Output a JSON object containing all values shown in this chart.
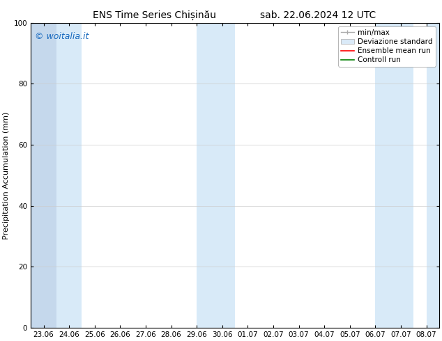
{
  "title_left": "ENS Time Series Chișinău",
  "title_right": "sab. 22.06.2024 12 UTC",
  "ylabel": "Precipitation Accumulation (mm)",
  "watermark": "© woitalia.it",
  "ylim": [
    0,
    100
  ],
  "yticks": [
    0,
    20,
    40,
    60,
    80,
    100
  ],
  "x_start": "2024-06-23",
  "x_end": "2024-07-08",
  "x_tick_dates": [
    "2024-06-23",
    "2024-06-24",
    "2024-06-25",
    "2024-06-26",
    "2024-06-27",
    "2024-06-28",
    "2024-06-29",
    "2024-06-30",
    "2024-07-01",
    "2024-07-02",
    "2024-07-03",
    "2024-07-04",
    "2024-07-05",
    "2024-07-06",
    "2024-07-07",
    "2024-07-08"
  ],
  "x_tick_labels": [
    "23.06",
    "24.06",
    "25.06",
    "26.06",
    "27.06",
    "28.06",
    "29.06",
    "30.06",
    "01.07",
    "02.07",
    "03.07",
    "04.07",
    "05.07",
    "06.07",
    "07.07",
    "08.07"
  ],
  "shaded_bands": [
    {
      "x_start": "2024-06-23 00:00",
      "x_end": "2024-06-23 12:00"
    },
    {
      "x_start": "2024-06-23 12:00",
      "x_end": "2024-06-24 12:00"
    },
    {
      "x_start": "2024-06-29 00:00",
      "x_end": "2024-06-30 12:00"
    },
    {
      "x_start": "2024-07-06 00:00",
      "x_end": "2024-07-07 12:00"
    }
  ],
  "band_color_dark": "#c8ddf0",
  "band_color_light": "#ddeef8",
  "std_band_color": "#daeaf8",
  "minmax_band_color": "#aaaaaa",
  "ensemble_mean_color": "#ff0000",
  "control_run_color": "#008000",
  "background_color": "#ffffff",
  "title_fontsize": 10,
  "label_fontsize": 8,
  "tick_fontsize": 7.5,
  "legend_fontsize": 7.5,
  "watermark_color": "#1a6bbf",
  "watermark_fontsize": 9
}
